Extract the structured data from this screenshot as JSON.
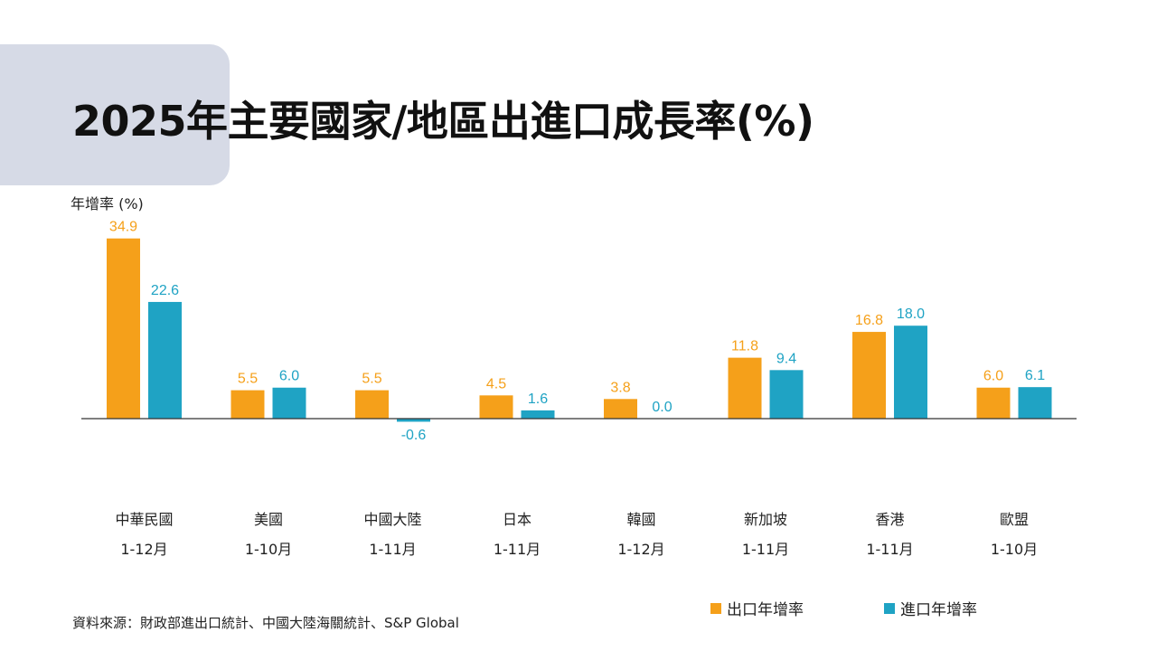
{
  "title": "2025年主要國家/地區出進口成長率(%)",
  "source": "資料來源：財政部進出口統計、中國大陸海關統計、S&P Global",
  "colors": {
    "export": "#f5a01a",
    "import": "#1fa3c4",
    "accent_box": "#d6dae6"
  },
  "chart_data": {
    "type": "bar",
    "title": "2025年主要國家/地區出進口成長率(%)",
    "ylabel": "年增率 (%)",
    "categories": [
      "中華民國",
      "美國",
      "中國大陸",
      "日本",
      "韓國",
      "新加坡",
      "香港",
      "歐盟"
    ],
    "periods": [
      "1-12月",
      "1-10月",
      "1-11月",
      "1-11月",
      "1-12月",
      "1-11月",
      "1-11月",
      "1-10月"
    ],
    "series": [
      {
        "name": "出口年增率",
        "values": [
          34.9,
          5.5,
          5.5,
          4.5,
          3.8,
          11.8,
          16.8,
          6.0
        ],
        "labels": [
          "34.9",
          "5.5",
          "5.5",
          "4.5",
          "3.8",
          "11.8",
          "16.8",
          "6.0"
        ]
      },
      {
        "name": "進口年增率",
        "values": [
          22.6,
          6.0,
          -0.6,
          1.6,
          0.0,
          9.4,
          18.0,
          6.1
        ],
        "labels": [
          "22.6",
          "6.0",
          "-0.6",
          "1.6",
          "0.0",
          "9.4",
          "18.0",
          "6.1"
        ]
      }
    ],
    "ylim": [
      -0.6,
      34.9
    ],
    "grid": false,
    "legend_position": "bottom-right"
  }
}
